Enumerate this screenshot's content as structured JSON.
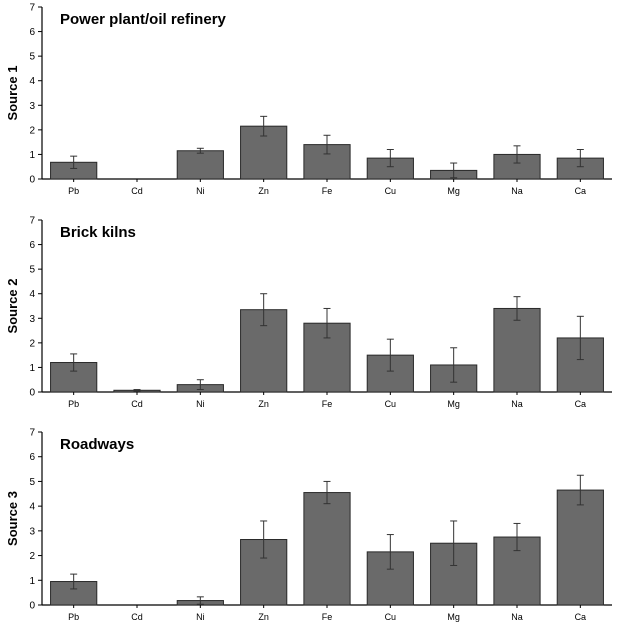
{
  "chart_data": [
    {
      "type": "bar",
      "title": "Power plant/oil refinery",
      "ylabel": "Source 1",
      "ylim": [
        0,
        7
      ],
      "yticks": [
        0,
        1,
        2,
        3,
        4,
        5,
        6,
        7
      ],
      "categories": [
        "Pb",
        "Cd",
        "Ni",
        "Zn",
        "Fe",
        "Cu",
        "Mg",
        "Na",
        "Ca"
      ],
      "values": [
        0.68,
        0,
        1.15,
        2.15,
        1.4,
        0.85,
        0.35,
        1.0,
        0.85
      ],
      "errors": [
        0.25,
        0,
        0.1,
        0.4,
        0.38,
        0.35,
        0.3,
        0.35,
        0.35
      ],
      "bar_color": "#6a6a6a"
    },
    {
      "type": "bar",
      "title": "Brick kilns",
      "ylabel": "Source 2",
      "ylim": [
        0,
        7
      ],
      "yticks": [
        0,
        1,
        2,
        3,
        4,
        5,
        6,
        7
      ],
      "categories": [
        "Pb",
        "Cd",
        "Ni",
        "Zn",
        "Fe",
        "Cu",
        "Mg",
        "Na",
        "Ca"
      ],
      "values": [
        1.2,
        0.07,
        0.3,
        3.35,
        2.8,
        1.5,
        1.1,
        3.4,
        2.2
      ],
      "errors": [
        0.35,
        0.03,
        0.2,
        0.65,
        0.6,
        0.65,
        0.7,
        0.48,
        0.88
      ],
      "bar_color": "#6a6a6a"
    },
    {
      "type": "bar",
      "title": "Roadways",
      "ylabel": "Source 3",
      "ylim": [
        0,
        7
      ],
      "yticks": [
        0,
        1,
        2,
        3,
        4,
        5,
        6,
        7
      ],
      "categories": [
        "Pb",
        "Cd",
        "Ni",
        "Zn",
        "Fe",
        "Cu",
        "Mg",
        "Na",
        "Ca"
      ],
      "values": [
        0.95,
        0,
        0.18,
        2.65,
        4.55,
        2.15,
        2.5,
        2.75,
        4.65
      ],
      "errors": [
        0.3,
        0,
        0.15,
        0.75,
        0.45,
        0.7,
        0.9,
        0.55,
        0.6
      ],
      "bar_color": "#6a6a6a"
    }
  ]
}
